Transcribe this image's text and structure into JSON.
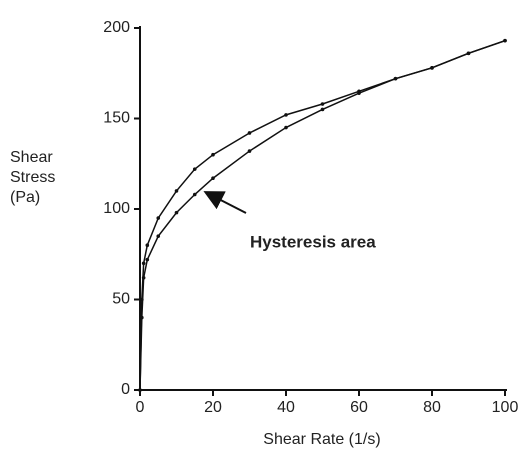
{
  "chart_data": {
    "type": "line",
    "x_label": "Shear Rate (1/s)",
    "y_label": "Shear Stress (Pa)",
    "annotation": "Hysteresis area",
    "x": [
      0,
      0.5,
      1,
      2,
      5,
      10,
      15,
      20,
      30,
      40,
      50,
      60,
      70,
      80,
      90,
      100
    ],
    "series": [
      {
        "color": "#111111",
        "values": [
          0,
          50,
          70,
          80,
          95,
          110,
          122,
          130,
          142,
          152,
          158,
          165,
          172,
          178,
          186,
          193
        ]
      },
      {
        "color": "#111111",
        "values": [
          0,
          40,
          62,
          72,
          85,
          98,
          108,
          117,
          132,
          145,
          155,
          164,
          172,
          178,
          186,
          193
        ]
      }
    ],
    "xlim": [
      0,
      100
    ],
    "xticks": [
      0,
      20,
      40,
      60,
      80,
      100
    ],
    "ylim": [
      0,
      200
    ],
    "yticks": [
      0,
      50,
      100,
      150,
      200
    ],
    "grid": false
  }
}
